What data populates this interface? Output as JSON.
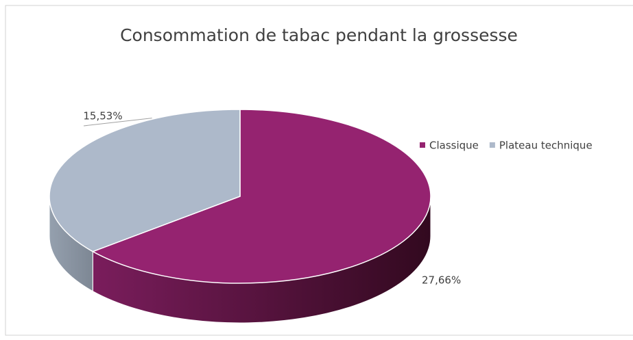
{
  "chart_data": {
    "type": "pie",
    "title": "Consommation de tabac pendant la grossesse",
    "categories": [
      "Classique",
      "Plateau technique"
    ],
    "values": [
      27.66,
      15.53
    ],
    "value_labels": [
      "27,66%",
      "15,53%"
    ],
    "colors": [
      "#952370",
      "#adb9ca"
    ],
    "legend": "right"
  }
}
